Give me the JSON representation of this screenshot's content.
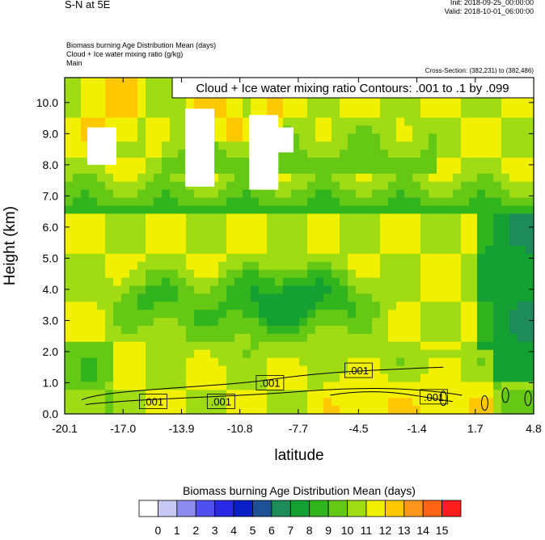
{
  "header": {
    "left_title": "S-N at 5E",
    "init": "Init: 2018-09-25_00:00:00",
    "valid": "Valid: 2018-10-01_06:00:00",
    "var1": "Biomass burning Age Distribution Mean   (days)",
    "var2": "Cloud + Ice water mixing ratio   (g/kg)",
    "var3": "Main",
    "cross_section": "Cross-Section: (382,231) to (382,486)"
  },
  "chart_data": {
    "type": "heatmap",
    "title": "Cloud + Ice water mixing ratio Contours: .001 to .1 by .099",
    "xlabel": "latitude",
    "ylabel": "Height (km)",
    "xlim": [
      -20.1,
      4.8
    ],
    "ylim": [
      0.0,
      10.8
    ],
    "x_ticks": [
      "-20.1",
      "-17.0",
      "-13.9",
      "-10.8",
      "-7.7",
      "-4.5",
      "-1.4",
      "1.7",
      "4.8"
    ],
    "y_ticks": [
      "0.0",
      "1.0",
      "2.0",
      "3.0",
      "4.0",
      "5.0",
      "6.0",
      "7.0",
      "8.0",
      "9.0",
      "10.0"
    ],
    "colorbar": {
      "title": "Biomass burning Age Distribution Mean  (days)",
      "labels": [
        "0",
        "1",
        "2",
        "3",
        "4",
        "5",
        "6",
        "7",
        "8",
        "9",
        "10",
        "11",
        "12",
        "13",
        "14",
        "15"
      ],
      "colors": [
        "#ffffff",
        "#c8c8f5",
        "#8c8cf0",
        "#5050f0",
        "#2828e6",
        "#0a1ec8",
        "#1e5096",
        "#1e8c5a",
        "#14a032",
        "#32b41e",
        "#64c814",
        "#a0dc14",
        "#f0f000",
        "#ffc800",
        "#ff961e",
        "#ff6414",
        "#ff1e1e"
      ]
    },
    "contour_labels": [
      {
        "text": ".001",
        "x": -15.4,
        "y": 0.4
      },
      {
        "text": ".001",
        "x": -11.8,
        "y": 0.4
      },
      {
        "text": ".001",
        "x": -9.2,
        "y": 1.0
      },
      {
        "text": ".001",
        "x": -4.5,
        "y": 1.4
      },
      {
        "text": ".001",
        "x": -0.5,
        "y": 0.55
      }
    ]
  }
}
